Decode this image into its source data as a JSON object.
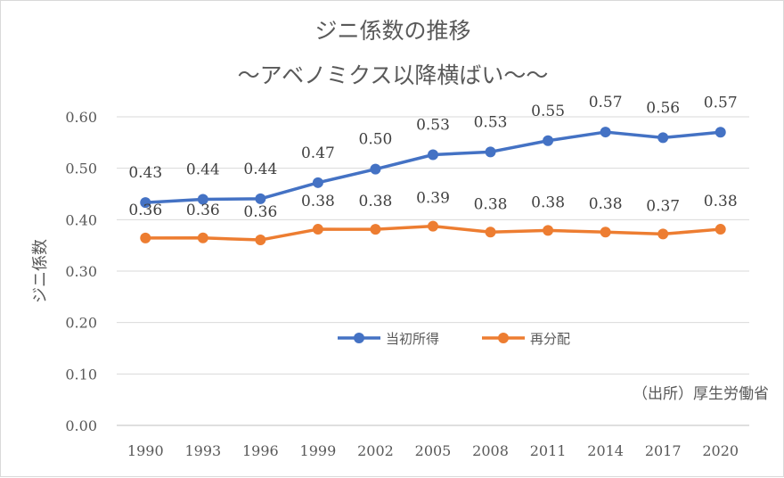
{
  "chart_data": {
    "type": "line",
    "title": "ジニ係数の推移",
    "subtitle": "～アベノミクス以降横ばい～～",
    "xlabel": "",
    "ylabel": "ジニ係数",
    "categories": [
      "1990",
      "1993",
      "1996",
      "1999",
      "2002",
      "2005",
      "2008",
      "2011",
      "2014",
      "2017",
      "2020"
    ],
    "ylim": [
      0,
      0.6
    ],
    "yticks": [
      "0.00",
      "0.10",
      "0.20",
      "0.30",
      "0.40",
      "0.50",
      "0.60"
    ],
    "grid": true,
    "legend_position": "center",
    "series": [
      {
        "name": "当初所得",
        "color": "#4472c4",
        "values": [
          0.4334,
          0.4395,
          0.4406,
          0.472,
          0.4983,
          0.5263,
          0.5318,
          0.5536,
          0.5704,
          0.5594,
          0.57
        ],
        "labels": [
          "0.43",
          "0.44",
          "0.44",
          "0.47",
          "0.50",
          "0.53",
          "0.53",
          "0.55",
          "0.57",
          "0.56",
          "0.57"
        ]
      },
      {
        "name": "再分配",
        "color": "#ed7d31",
        "values": [
          0.3643,
          0.3645,
          0.3606,
          0.3814,
          0.3812,
          0.3873,
          0.3758,
          0.3791,
          0.3759,
          0.3721,
          0.3814
        ],
        "labels": [
          "0.36",
          "0.36",
          "0.36",
          "0.38",
          "0.38",
          "0.39",
          "0.38",
          "0.38",
          "0.38",
          "0.37",
          "0.38"
        ]
      }
    ],
    "annotation": "（出所）厚生労働省"
  }
}
